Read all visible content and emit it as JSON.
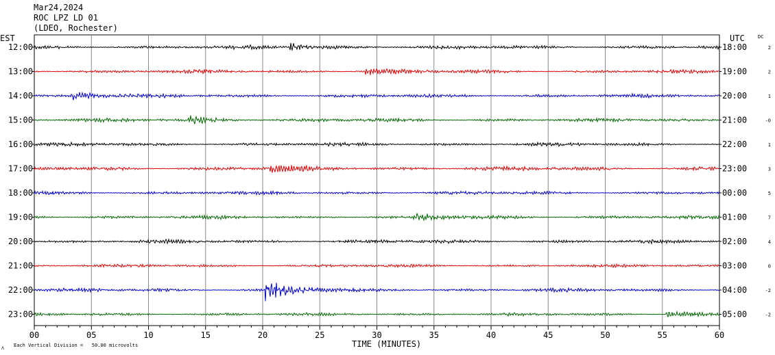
{
  "header": {
    "date": "Mar24,2024",
    "station": "ROC LPZ LD 01",
    "network": "(LDEO, Rochester)"
  },
  "left_axis_label": "EST",
  "right_axis_label": "UTC",
  "dc_label": "DC",
  "footer": {
    "scale_note": "Each Vertical Division =   50.00 microvolts",
    "xlabel": "TIME (MINUTES)"
  },
  "colors": {
    "black": "#000000",
    "red": "#dd0000",
    "blue": "#0000cc",
    "green": "#006600",
    "grid": "#888888"
  },
  "chart_data": {
    "type": "line",
    "title": "",
    "xlabel": "TIME (MINUTES)",
    "xlim": [
      0,
      60
    ],
    "x_ticks": [
      "00",
      "05",
      "10",
      "15",
      "20",
      "25",
      "30",
      "35",
      "40",
      "45",
      "50",
      "55",
      "60"
    ],
    "grid": true,
    "series": [
      {
        "left": "12:00",
        "right": "18:00",
        "dc": "2",
        "color": "#000000",
        "amplitude": 3,
        "events": [
          {
            "minute": 22.4,
            "size": 5
          }
        ]
      },
      {
        "left": "13:00",
        "right": "19:00",
        "dc": "2",
        "color": "#dd0000",
        "amplitude": 3,
        "events": [
          {
            "minute": 29,
            "size": 4
          }
        ]
      },
      {
        "left": "14:00",
        "right": "20:00",
        "dc": "1",
        "color": "#0000cc",
        "amplitude": 3,
        "events": [
          {
            "minute": 3.2,
            "size": 6
          }
        ]
      },
      {
        "left": "15:00",
        "right": "21:00",
        "dc": "-0",
        "color": "#006600",
        "amplitude": 3,
        "events": [
          {
            "minute": 13.5,
            "size": 5
          }
        ]
      },
      {
        "left": "16:00",
        "right": "22:00",
        "dc": "1",
        "color": "#000000",
        "amplitude": 3,
        "events": []
      },
      {
        "left": "17:00",
        "right": "23:00",
        "dc": "3",
        "color": "#dd0000",
        "amplitude": 3.5,
        "events": [
          {
            "minute": 20.5,
            "size": 4
          }
        ]
      },
      {
        "left": "18:00",
        "right": "00:00",
        "dc": "5",
        "color": "#0000cc",
        "amplitude": 3,
        "events": []
      },
      {
        "left": "19:00",
        "right": "01:00",
        "dc": "7",
        "color": "#006600",
        "amplitude": 3,
        "events": [
          {
            "minute": 33.5,
            "size": 4
          }
        ]
      },
      {
        "left": "20:00",
        "right": "02:00",
        "dc": "4",
        "color": "#000000",
        "amplitude": 3,
        "events": []
      },
      {
        "left": "21:00",
        "right": "03:00",
        "dc": "0",
        "color": "#dd0000",
        "amplitude": 2.5,
        "events": []
      },
      {
        "left": "22:00",
        "right": "04:00",
        "dc": "-2",
        "color": "#0000cc",
        "amplitude": 3,
        "events": [
          {
            "minute": 20.2,
            "size": 14
          }
        ]
      },
      {
        "left": "23:00",
        "right": "05:00",
        "dc": "-2",
        "color": "#006600",
        "amplitude": 2.5,
        "events": [
          {
            "minute": 55.3,
            "size": 5
          }
        ]
      }
    ]
  }
}
